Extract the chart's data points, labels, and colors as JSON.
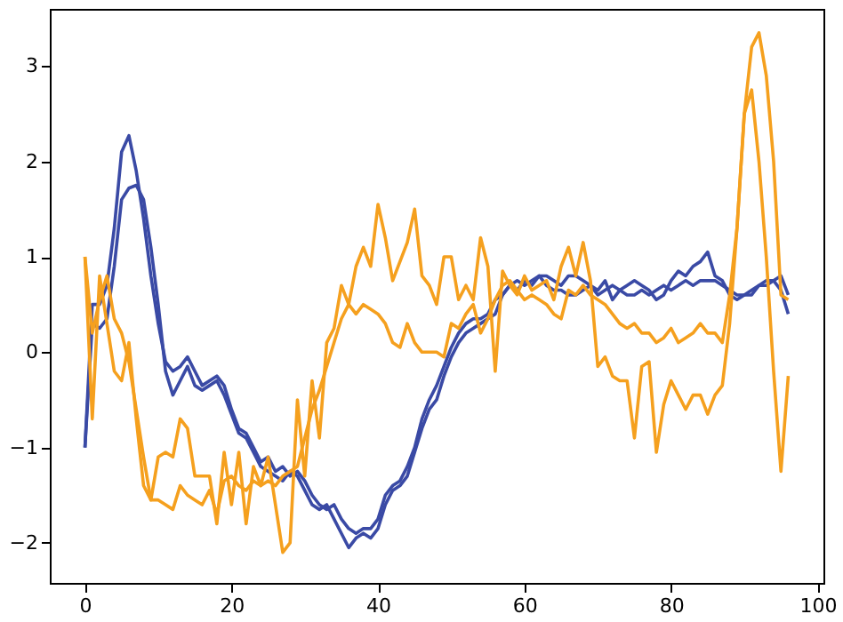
{
  "chart_data": {
    "type": "line",
    "x": [
      0,
      1,
      2,
      3,
      4,
      5,
      6,
      7,
      8,
      9,
      10,
      11,
      12,
      13,
      14,
      15,
      16,
      17,
      18,
      19,
      20,
      21,
      22,
      23,
      24,
      25,
      26,
      27,
      28,
      29,
      30,
      31,
      32,
      33,
      34,
      35,
      36,
      37,
      38,
      39,
      40,
      41,
      42,
      43,
      44,
      45,
      46,
      47,
      48,
      49,
      50,
      51,
      52,
      53,
      54,
      55,
      56,
      57,
      58,
      59,
      60,
      61,
      62,
      63,
      64,
      65,
      66,
      67,
      68,
      69,
      70,
      71,
      72,
      73,
      74,
      75,
      76,
      77,
      78,
      79,
      80,
      81,
      82,
      83,
      84,
      85,
      86,
      87,
      88,
      89,
      90,
      91,
      92,
      93,
      94,
      95,
      96
    ],
    "xlim": [
      -4.8,
      100.8
    ],
    "xticks": [
      0,
      20,
      40,
      60,
      80,
      100
    ],
    "ylim": [
      -2.42,
      3.6
    ],
    "yticks": [
      -2,
      -1,
      0,
      1,
      2,
      3
    ],
    "grid": false,
    "line_style": "solid",
    "marker": "none",
    "series": [
      {
        "color": "#3a4aa5",
        "values": [
          -1,
          0.5,
          0.5,
          0.7,
          1.3,
          2.1,
          2.27,
          1.9,
          1.4,
          0.8,
          0.3,
          -0.1,
          -0.2,
          -0.15,
          -0.05,
          -0.2,
          -0.35,
          -0.3,
          -0.25,
          -0.35,
          -0.6,
          -0.8,
          -0.85,
          -1,
          -1.15,
          -1.1,
          -1.25,
          -1.2,
          -1.3,
          -1.25,
          -1.35,
          -1.5,
          -1.6,
          -1.65,
          -1.6,
          -1.75,
          -1.85,
          -1.9,
          -1.85,
          -1.85,
          -1.75,
          -1.5,
          -1.4,
          -1.35,
          -1.2,
          -1,
          -0.7,
          -0.5,
          -0.35,
          -0.15,
          0.05,
          0.2,
          0.3,
          0.35,
          0.35,
          0.4,
          0.55,
          0.6,
          0.7,
          0.75,
          0.7,
          0.75,
          0.8,
          0.8,
          0.75,
          0.7,
          0.8,
          0.8,
          0.75,
          0.7,
          0.65,
          0.75,
          0.55,
          0.65,
          0.7,
          0.75,
          0.7,
          0.65,
          0.55,
          0.6,
          0.75,
          0.85,
          0.8,
          0.9,
          0.95,
          1.05,
          0.8,
          0.75,
          0.6,
          0.55,
          0.6,
          0.6,
          0.7,
          0.75,
          0.75,
          0.8,
          0.6
        ]
      },
      {
        "color": "#3a4aa5",
        "values": [
          -1,
          0.3,
          0.25,
          0.35,
          0.9,
          1.6,
          1.72,
          1.75,
          1.6,
          1.1,
          0.5,
          -0.2,
          -0.45,
          -0.3,
          -0.15,
          -0.35,
          -0.4,
          -0.35,
          -0.3,
          -0.45,
          -0.65,
          -0.85,
          -0.9,
          -1.05,
          -1.2,
          -1.25,
          -1.3,
          -1.35,
          -1.25,
          -1.3,
          -1.45,
          -1.6,
          -1.65,
          -1.6,
          -1.75,
          -1.9,
          -2.05,
          -1.95,
          -1.9,
          -1.95,
          -1.85,
          -1.6,
          -1.45,
          -1.4,
          -1.3,
          -1.05,
          -0.8,
          -0.6,
          -0.5,
          -0.25,
          -0.05,
          0.1,
          0.2,
          0.25,
          0.3,
          0.35,
          0.4,
          0.6,
          0.7,
          0.65,
          0.75,
          0.7,
          0.8,
          0.7,
          0.65,
          0.65,
          0.6,
          0.6,
          0.65,
          0.7,
          0.6,
          0.65,
          0.7,
          0.65,
          0.6,
          0.6,
          0.65,
          0.6,
          0.65,
          0.7,
          0.65,
          0.7,
          0.75,
          0.7,
          0.75,
          0.75,
          0.75,
          0.7,
          0.65,
          0.6,
          0.6,
          0.65,
          0.7,
          0.7,
          0.75,
          0.65,
          0.4
        ]
      },
      {
        "color": "#f5a01e",
        "values": [
          1,
          -0.7,
          0.8,
          0.3,
          -0.2,
          -0.3,
          0.1,
          -0.7,
          -1.4,
          -1.55,
          -1.1,
          -1.05,
          -1.1,
          -0.7,
          -0.8,
          -1.3,
          -1.3,
          -1.3,
          -1.8,
          -1.05,
          -1.6,
          -1.05,
          -1.8,
          -1.2,
          -1.4,
          -1.1,
          -1.6,
          -2.1,
          -2,
          -0.5,
          -1.3,
          -0.3,
          -0.9,
          0.1,
          0.25,
          0.7,
          0.5,
          0.9,
          1.1,
          0.9,
          1.55,
          1.2,
          0.75,
          0.95,
          1.15,
          1.5,
          0.8,
          0.7,
          0.5,
          1,
          1,
          0.55,
          0.7,
          0.55,
          1.2,
          0.9,
          -0.2,
          0.85,
          0.7,
          0.6,
          0.8,
          0.65,
          0.7,
          0.75,
          0.55,
          0.9,
          1.1,
          0.8,
          1.15,
          0.75,
          -0.15,
          -0.05,
          -0.25,
          -0.3,
          -0.3,
          -0.9,
          -0.15,
          -0.1,
          -1.05,
          -0.55,
          -0.3,
          -0.45,
          -0.6,
          -0.45,
          -0.45,
          -0.65,
          -0.45,
          -0.35,
          0.3,
          1.3,
          2.5,
          3.2,
          3.35,
          2.9,
          2,
          0.6,
          0.55
        ]
      },
      {
        "color": "#f5a01e",
        "values": [
          1,
          0.2,
          0.55,
          0.8,
          0.35,
          0.2,
          -0.1,
          -0.6,
          -1.1,
          -1.55,
          -1.55,
          -1.6,
          -1.65,
          -1.4,
          -1.5,
          -1.55,
          -1.6,
          -1.45,
          -1.7,
          -1.35,
          -1.3,
          -1.4,
          -1.45,
          -1.35,
          -1.4,
          -1.35,
          -1.4,
          -1.3,
          -1.25,
          -1.2,
          -0.9,
          -0.6,
          -0.4,
          -0.15,
          0.1,
          0.35,
          0.5,
          0.4,
          0.5,
          0.45,
          0.4,
          0.3,
          0.1,
          0.05,
          0.3,
          0.1,
          0,
          0,
          0,
          -0.05,
          0.3,
          0.25,
          0.4,
          0.5,
          0.2,
          0.35,
          0.55,
          0.7,
          0.75,
          0.65,
          0.55,
          0.6,
          0.55,
          0.5,
          0.4,
          0.35,
          0.65,
          0.6,
          0.7,
          0.6,
          0.55,
          0.5,
          0.4,
          0.3,
          0.25,
          0.3,
          0.2,
          0.2,
          0.1,
          0.15,
          0.25,
          0.1,
          0.15,
          0.2,
          0.3,
          0.2,
          0.2,
          0.1,
          0.6,
          1.3,
          2.5,
          2.75,
          2,
          1,
          -0.2,
          -1.25,
          -0.25
        ]
      }
    ]
  }
}
